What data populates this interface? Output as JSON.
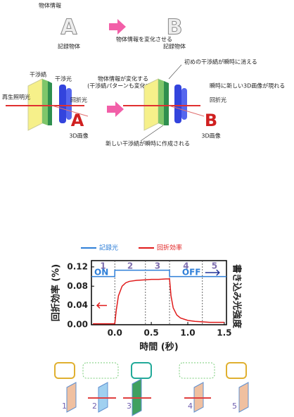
{
  "top": {
    "label_object_info": "物体情報",
    "letter_a": "A",
    "recorded_object_a": "記録物体",
    "change_text": "物体情報を変化させる",
    "letter_b": "B",
    "recorded_object_b": "記録物体",
    "fringe": "干渉縞",
    "interference_light": "干渉光",
    "readout_light": "再生照明光",
    "info_changes": "物体情報が変化する",
    "pattern_changes": "(干渉縞パターンも変化する)",
    "diffracted_left": "回折光",
    "image_a": "A",
    "image3d_left": "3D画像",
    "old_fringe_vanish": "初めの干渉縞が瞬時に消える",
    "new_image_appears": "瞬時に新しい3D画像が現れる",
    "diffracted_right": "回折光",
    "image_b": "B",
    "image3d_right": "3D画像",
    "new_fringe_created": "新しい干渉縞が瞬時に作成される"
  },
  "chart_data": {
    "type": "line",
    "xlabel": "時間 (秒)",
    "ylabel": "回折効率 (%)",
    "y2label": "書き込み光強度",
    "xlim": [
      -0.32,
      1.53
    ],
    "ylim": [
      0,
      0.133
    ],
    "xticks": [
      {
        "value": 0,
        "label": "0.0"
      },
      0.5,
      {
        "value": 1,
        "label": "1.0"
      },
      1.5
    ],
    "yticks": [
      {
        "value": 0,
        "label": "0.00"
      },
      0.04,
      0.08,
      0.12
    ],
    "phase_boundaries": [
      0,
      0.42,
      0.75,
      1.2
    ],
    "phase_labels": [
      "1",
      "2",
      "3",
      "4",
      "5"
    ],
    "annotations": [
      "ON",
      "OFF"
    ],
    "series": [
      {
        "name": "記録光",
        "color": "#2f7fd8",
        "x": [
          -0.32,
          0,
          0,
          0.75,
          0.75,
          1.53
        ],
        "values": [
          0.1,
          0.1,
          0.113,
          0.113,
          0.1,
          0.1
        ]
      },
      {
        "name": "回折効率",
        "color": "#e01b1b",
        "x": [
          -0.3,
          -0.2,
          -0.1,
          0,
          0.02,
          0.05,
          0.1,
          0.15,
          0.2,
          0.3,
          0.4,
          0.5,
          0.6,
          0.7,
          0.75,
          0.77,
          0.8,
          0.85,
          0.9,
          1.0,
          1.1,
          1.2,
          1.3,
          1.4,
          1.5
        ],
        "values": [
          0.002,
          0.002,
          0.002,
          0.002,
          0.03,
          0.06,
          0.08,
          0.087,
          0.09,
          0.092,
          0.093,
          0.094,
          0.094,
          0.095,
          0.095,
          0.06,
          0.035,
          0.02,
          0.014,
          0.009,
          0.007,
          0.006,
          0.005,
          0.005,
          0.005
        ]
      }
    ]
  },
  "bottom": {
    "steps": [
      "1",
      "2",
      "3",
      "4",
      "5"
    ]
  }
}
